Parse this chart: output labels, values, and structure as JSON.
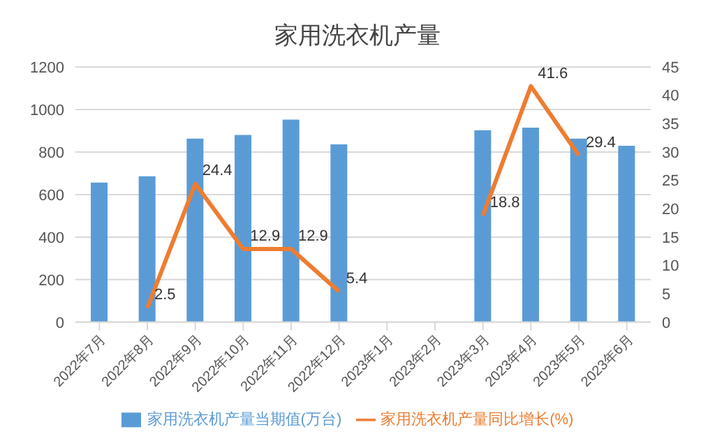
{
  "chart_data": {
    "type": "bar",
    "title": "家用洗衣机产量",
    "categories": [
      "2022年7月",
      "2022年8月",
      "2022年9月",
      "2022年10月",
      "2022年11月",
      "2022年12月",
      "2023年1月",
      "2023年2月",
      "2023年3月",
      "2023年4月",
      "2023年5月",
      "2023年6月"
    ],
    "series": [
      {
        "name": "家用洗衣机产量当期值(万台)",
        "color": "#5b9bd5",
        "values": [
          656,
          686,
          863,
          880,
          952,
          836,
          null,
          null,
          902,
          915,
          863,
          829
        ]
      },
      {
        "name": "家用洗衣机产量同比增长(%)",
        "type": "line",
        "axis": "y2",
        "color": "#ed7d31",
        "values": [
          null,
          2.5,
          24.4,
          12.9,
          12.9,
          5.4,
          null,
          null,
          18.8,
          41.6,
          29.4,
          null
        ],
        "data_labels": true
      }
    ],
    "ylim": [
      0,
      1200
    ],
    "yticks": [
      0,
      200,
      400,
      600,
      800,
      1000,
      1200
    ],
    "y2lim": [
      0,
      45
    ],
    "y2ticks": [
      0,
      5,
      10,
      15,
      20,
      25,
      30,
      35,
      40,
      45
    ],
    "grid": "y",
    "legend": "bottom",
    "marker": "none"
  }
}
